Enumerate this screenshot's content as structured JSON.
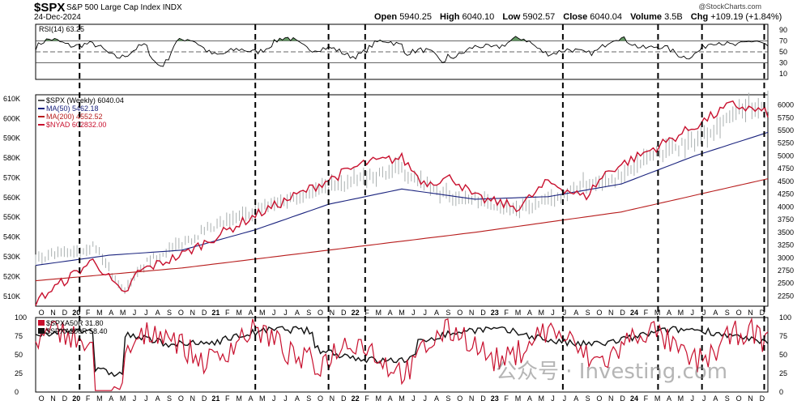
{
  "header": {
    "symbol": "$SPX",
    "description": "S&P 500 Large Cap Index",
    "exchange": "INDX",
    "date": "24-Dec-2024",
    "brand": "@StockCharts.com",
    "open_label": "Open",
    "open": "5940.25",
    "high_label": "High",
    "high": "6040.10",
    "low_label": "Low",
    "low": "5902.57",
    "close_label": "Close",
    "close": "6040.04",
    "volume_label": "Volume",
    "volume": "3.5B",
    "chg_label": "Chg",
    "chg": "+109.19 (+1.84%)"
  },
  "colors": {
    "price": "#aab0b0",
    "ma50": "#1a237e",
    "ma200": "#b71c1c",
    "nyad": "#c8102e",
    "rsi_fill": "#4c8a4c",
    "breadth_red": "#c8102e",
    "breadth_black": "#111111"
  },
  "chart_data": [
    {
      "type": "line",
      "panel": "RSI",
      "legend": [
        "RSI(14) 63.25"
      ],
      "y_ticks": [
        90,
        70,
        50,
        30,
        10
      ],
      "ylim": [
        0,
        100
      ],
      "reference_lines": [
        70,
        50,
        30
      ],
      "series": [
        {
          "name": "RSI(14)",
          "last": 63.25
        }
      ]
    },
    {
      "type": "line",
      "panel": "Price",
      "legend": [
        "$SPX (Weekly) 6040.04",
        "MA(50) 5462.18",
        "MA(200) 4552.52",
        "$NYAD 602832.00"
      ],
      "left_axis_ticks": [
        "610K",
        "600K",
        "590K",
        "580K",
        "570K",
        "560K",
        "550K",
        "540K",
        "530K",
        "520K",
        "510K"
      ],
      "right_axis_ticks": [
        "6000",
        "5750",
        "5500",
        "5250",
        "5000",
        "4750",
        "4500",
        "4250",
        "4000",
        "3750",
        "3500",
        "3250",
        "3000",
        "2750",
        "2500",
        "2250"
      ],
      "right_ylim": [
        2050,
        6200
      ],
      "left_ylim": [
        505000,
        612000
      ],
      "series": [
        {
          "name": "$SPX (Weekly)",
          "color": "#aab0b0",
          "t": [
            0,
            0.08,
            0.12,
            0.15,
            0.2,
            0.3,
            0.4,
            0.5,
            0.55,
            0.6,
            0.66,
            0.7,
            0.75,
            0.8,
            0.85,
            0.9,
            0.95,
            1.0
          ],
          "values": [
            2950,
            3250,
            2350,
            2900,
            3300,
            3950,
            4400,
            4750,
            4250,
            4150,
            3950,
            4100,
            4450,
            4600,
            5100,
            5300,
            5800,
            6040
          ]
        },
        {
          "name": "MA(50)",
          "color": "#1a237e",
          "t": [
            0,
            0.1,
            0.2,
            0.3,
            0.4,
            0.5,
            0.6,
            0.7,
            0.8,
            0.9,
            1.0
          ],
          "values": [
            2850,
            3050,
            3150,
            3550,
            4050,
            4350,
            4150,
            4200,
            4450,
            5000,
            5462
          ]
        },
        {
          "name": "MA(200)",
          "color": "#b71c1c",
          "t": [
            0,
            0.2,
            0.4,
            0.6,
            0.8,
            1.0
          ],
          "values": [
            2550,
            2800,
            3150,
            3500,
            3900,
            4552
          ]
        },
        {
          "name": "$NYAD",
          "color": "#c8102e",
          "t": [
            0,
            0.08,
            0.12,
            0.14,
            0.2,
            0.3,
            0.4,
            0.45,
            0.5,
            0.53,
            0.57,
            0.6,
            0.66,
            0.7,
            0.75,
            0.78,
            0.85,
            0.9,
            0.95,
            1.0
          ],
          "values": [
            507500,
            528500,
            510000,
            522500,
            531000,
            551000,
            569000,
            577500,
            580000,
            567500,
            570000,
            560000,
            555000,
            568000,
            560000,
            573000,
            586000,
            596000,
            607000,
            602832
          ]
        }
      ]
    },
    {
      "type": "line",
      "panel": "Breadth",
      "legend": [
        "$SPXA50R 31.80",
        "$SPXA200R 58.40"
      ],
      "y_ticks": [
        100,
        75,
        50,
        25,
        0
      ],
      "ylim": [
        0,
        100
      ],
      "series": [
        {
          "name": "$SPXA50R",
          "last": 31.8
        },
        {
          "name": "$SPXA200R",
          "last": 58.4
        }
      ]
    }
  ],
  "x_axis": {
    "labels": [
      "O",
      "N",
      "D",
      "20",
      "F",
      "M",
      "A",
      "M",
      "J",
      "J",
      "A",
      "S",
      "O",
      "N",
      "D",
      "21",
      "F",
      "M",
      "A",
      "M",
      "J",
      "J",
      "A",
      "S",
      "O",
      "N",
      "D",
      "22",
      "F",
      "M",
      "A",
      "M",
      "J",
      "J",
      "A",
      "S",
      "O",
      "N",
      "D",
      "23",
      "F",
      "M",
      "A",
      "M",
      "J",
      "J",
      "A",
      "S",
      "O",
      "N",
      "D",
      "24",
      "F",
      "M",
      "A",
      "M",
      "J",
      "J",
      "A",
      "S",
      "O",
      "N",
      "D"
    ],
    "year_labels": [
      "20",
      "21",
      "22",
      "23",
      "24"
    ]
  },
  "watermark": "公众号 · Investing.com"
}
